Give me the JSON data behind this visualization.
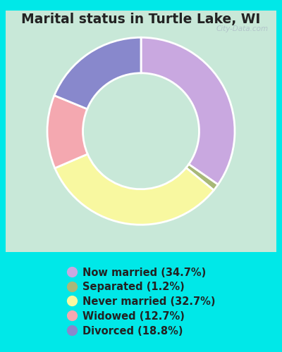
{
  "title": "Marital status in Turtle Lake, WI",
  "slices": [
    {
      "label": "Now married (34.7%)",
      "value": 34.7,
      "color": "#c9a8e0"
    },
    {
      "label": "Separated (1.2%)",
      "value": 1.2,
      "color": "#a8b878"
    },
    {
      "label": "Never married (32.7%)",
      "value": 32.7,
      "color": "#f8f8a0"
    },
    {
      "label": "Widowed (12.7%)",
      "value": 12.7,
      "color": "#f4a8b0"
    },
    {
      "label": "Divorced (18.8%)",
      "value": 18.8,
      "color": "#8888cc"
    }
  ],
  "bg_outer": "#00e8e8",
  "bg_chart_color": "#c8e8d8",
  "donut_width": 0.38,
  "start_angle": 90,
  "title_fontsize": 13.5,
  "legend_fontsize": 10.5,
  "watermark": "City-Data.com"
}
